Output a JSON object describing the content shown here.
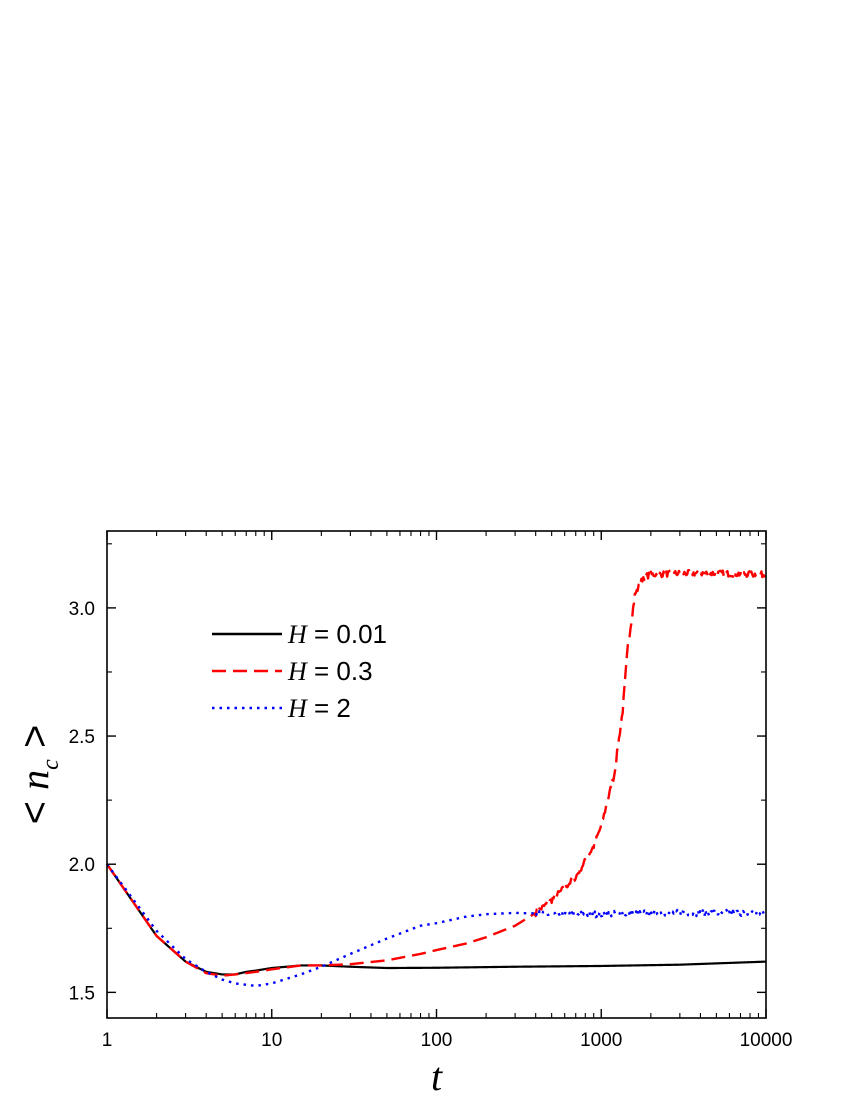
{
  "chart_data": {
    "type": "line",
    "xlabel": "t",
    "ylabel_prefix": "< ",
    "ylabel_var": "n",
    "ylabel_sub": "c",
    "ylabel_suffix": " >",
    "xscale": "log",
    "xlim": [
      1,
      10000
    ],
    "ylim": [
      1.4,
      3.3
    ],
    "xticks": [
      1,
      10,
      100,
      1000,
      10000
    ],
    "xtick_labels": [
      "1",
      "10",
      "100",
      "1000",
      "10000"
    ],
    "yticks": [
      1.5,
      2.0,
      2.5,
      3.0
    ],
    "ytick_labels": [
      "1.5",
      "2.0",
      "2.5",
      "3.0"
    ],
    "grid": false,
    "legend_position": "upper-left",
    "series": [
      {
        "name_var": "H",
        "name_value": " = 0.01",
        "color": "#000000",
        "style": "solid",
        "noise": 0,
        "points": [
          [
            1,
            2.0
          ],
          [
            2,
            1.72
          ],
          [
            3,
            1.62
          ],
          [
            4,
            1.58
          ],
          [
            5,
            1.57
          ],
          [
            6,
            1.57
          ],
          [
            7,
            1.58
          ],
          [
            8,
            1.585
          ],
          [
            10,
            1.595
          ],
          [
            15,
            1.605
          ],
          [
            20,
            1.605
          ],
          [
            30,
            1.6
          ],
          [
            50,
            1.595
          ],
          [
            100,
            1.596
          ],
          [
            300,
            1.6
          ],
          [
            1000,
            1.603
          ],
          [
            3000,
            1.608
          ],
          [
            10000,
            1.62
          ]
        ]
      },
      {
        "name_var": "H",
        "name_value": " = 0.3",
        "color": "#ff0000",
        "style": "dashed",
        "noise": 0.012,
        "points": [
          [
            1,
            2.0
          ],
          [
            2,
            1.72
          ],
          [
            3,
            1.62
          ],
          [
            4,
            1.575
          ],
          [
            5,
            1.565
          ],
          [
            6,
            1.57
          ],
          [
            8,
            1.58
          ],
          [
            10,
            1.59
          ],
          [
            15,
            1.605
          ],
          [
            20,
            1.605
          ],
          [
            30,
            1.61
          ],
          [
            50,
            1.625
          ],
          [
            80,
            1.65
          ],
          [
            100,
            1.665
          ],
          [
            150,
            1.69
          ],
          [
            200,
            1.715
          ],
          [
            300,
            1.76
          ],
          [
            400,
            1.81
          ],
          [
            500,
            1.86
          ],
          [
            700,
            1.95
          ],
          [
            900,
            2.07
          ],
          [
            1000,
            2.15
          ],
          [
            1200,
            2.35
          ],
          [
            1350,
            2.6
          ],
          [
            1450,
            2.85
          ],
          [
            1600,
            3.05
          ],
          [
            1800,
            3.12
          ],
          [
            2000,
            3.13
          ],
          [
            3000,
            3.135
          ],
          [
            5000,
            3.135
          ],
          [
            10000,
            3.13
          ]
        ]
      },
      {
        "name_var": "H",
        "name_value": " = 2",
        "color": "#0000ff",
        "style": "dotted",
        "noise": 0.012,
        "points": [
          [
            1,
            2.0
          ],
          [
            2,
            1.74
          ],
          [
            3,
            1.63
          ],
          [
            4,
            1.58
          ],
          [
            5,
            1.55
          ],
          [
            6,
            1.535
          ],
          [
            8,
            1.525
          ],
          [
            10,
            1.535
          ],
          [
            15,
            1.57
          ],
          [
            20,
            1.6
          ],
          [
            30,
            1.65
          ],
          [
            50,
            1.71
          ],
          [
            80,
            1.76
          ],
          [
            100,
            1.77
          ],
          [
            150,
            1.795
          ],
          [
            200,
            1.805
          ],
          [
            300,
            1.81
          ],
          [
            400,
            1.808
          ],
          [
            500,
            1.805
          ],
          [
            700,
            1.805
          ],
          [
            1000,
            1.805
          ],
          [
            2000,
            1.81
          ],
          [
            5000,
            1.81
          ],
          [
            10000,
            1.81
          ]
        ]
      }
    ]
  }
}
